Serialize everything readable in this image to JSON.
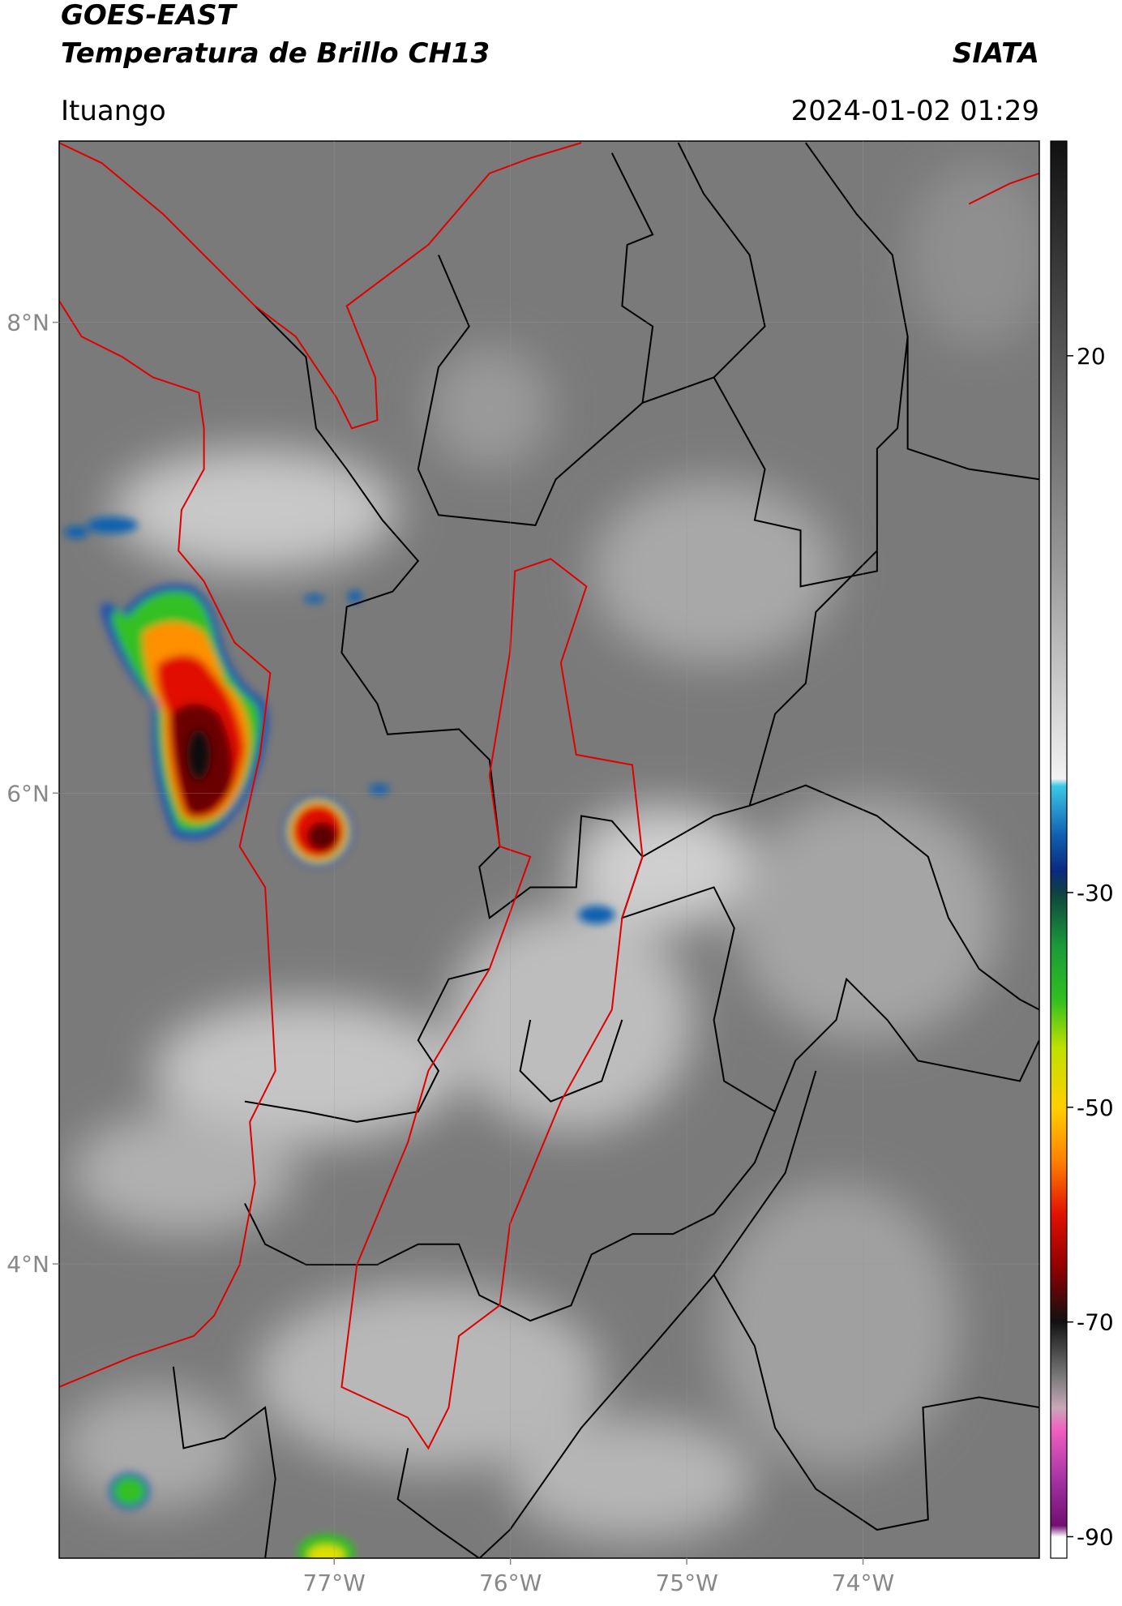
{
  "header": {
    "title": "GOES-EAST",
    "subtitle": "Temperatura de Brillo CH13",
    "brand": "SIATA",
    "location": "Ituango",
    "datetime": "2024-01-02 01:29"
  },
  "map": {
    "xlim": [
      -78.56,
      -73.0
    ],
    "ylim": [
      2.75,
      8.77
    ],
    "xticks": [
      {
        "value": -77,
        "label": "77°W"
      },
      {
        "value": -76,
        "label": "76°W"
      },
      {
        "value": -75,
        "label": "75°W"
      },
      {
        "value": -74,
        "label": "74°W"
      }
    ],
    "yticks": [
      {
        "value": 4,
        "label": "4°N"
      },
      {
        "value": 6,
        "label": "6°N"
      },
      {
        "value": 8,
        "label": "8°N"
      }
    ],
    "grid": true
  },
  "colorbar": {
    "lim": [
      -92,
      40
    ],
    "ticks": [
      20,
      -30,
      -50,
      -70,
      -90
    ]
  }
}
